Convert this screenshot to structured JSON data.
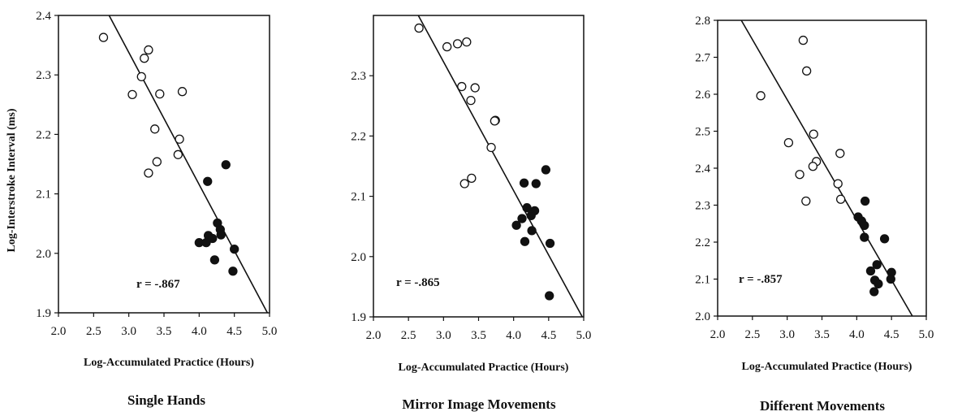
{
  "chart_data": [
    {
      "type": "scatter",
      "title": "Single Hands",
      "xlabel": "Log-Accumulated Practice (Hours)",
      "ylabel": "Log-Interstroke Interval (ms)",
      "xlim": [
        2.0,
        5.0
      ],
      "ylim": [
        1.9,
        2.4
      ],
      "xticks": [
        "2.0",
        "2.5",
        "3.0",
        "3.5",
        "4.0",
        "4.5",
        "5.0"
      ],
      "yticks": [
        "1.9",
        "2.0",
        "2.1",
        "2.2",
        "2.3",
        "2.4"
      ],
      "annotation": "r  =  -.867",
      "fit_line": [
        [
          2.72,
          2.4
        ],
        [
          4.97,
          1.9
        ]
      ],
      "series": [
        {
          "marker": "open",
          "points": [
            [
              2.64,
              2.363
            ],
            [
              3.05,
              2.267
            ],
            [
              3.18,
              2.297
            ],
            [
              3.22,
              2.328
            ],
            [
              3.28,
              2.342
            ],
            [
              3.44,
              2.268
            ],
            [
              3.76,
              2.272
            ],
            [
              3.37,
              2.209
            ],
            [
              3.72,
              2.192
            ],
            [
              3.7,
              2.166
            ],
            [
              3.4,
              2.154
            ],
            [
              3.28,
              2.135
            ]
          ]
        },
        {
          "marker": "filled",
          "points": [
            [
              4.12,
              2.121
            ],
            [
              4.38,
              2.149
            ],
            [
              4.26,
              2.051
            ],
            [
              4.3,
              2.04
            ],
            [
              4.31,
              2.031
            ],
            [
              4.13,
              2.03
            ],
            [
              4.19,
              2.025
            ],
            [
              4.0,
              2.018
            ],
            [
              4.1,
              2.018
            ],
            [
              4.5,
              2.007
            ],
            [
              4.22,
              1.989
            ],
            [
              4.48,
              1.97
            ]
          ]
        }
      ]
    },
    {
      "type": "scatter",
      "title": "Mirror Image Movements",
      "xlabel": "Log-Accumulated Practice (Hours)",
      "ylabel": "",
      "xlim": [
        2.0,
        5.0
      ],
      "ylim": [
        1.9,
        2.4
      ],
      "xticks": [
        "2.0",
        "2.5",
        "3.0",
        "3.5",
        "4.0",
        "4.5",
        "5.0"
      ],
      "yticks": [
        "1.9",
        "2.0",
        "2.1",
        "2.2",
        "2.3"
      ],
      "annotation": "r  =  -.865",
      "fit_line": [
        [
          2.64,
          2.4
        ],
        [
          4.98,
          1.9
        ]
      ],
      "series": [
        {
          "marker": "open",
          "points": [
            [
              2.65,
              2.379
            ],
            [
              3.05,
              2.348
            ],
            [
              3.2,
              2.353
            ],
            [
              3.33,
              2.356
            ],
            [
              3.26,
              2.282
            ],
            [
              3.45,
              2.28
            ],
            [
              3.39,
              2.259
            ],
            [
              3.74,
              2.226
            ],
            [
              3.73,
              2.225
            ],
            [
              3.68,
              2.181
            ],
            [
              3.4,
              2.13
            ],
            [
              3.3,
              2.121
            ]
          ]
        },
        {
          "marker": "filled",
          "points": [
            [
              4.15,
              2.122
            ],
            [
              4.32,
              2.121
            ],
            [
              4.46,
              2.144
            ],
            [
              4.19,
              2.081
            ],
            [
              4.3,
              2.076
            ],
            [
              4.25,
              2.068
            ],
            [
              4.12,
              2.063
            ],
            [
              4.04,
              2.052
            ],
            [
              4.26,
              2.043
            ],
            [
              4.16,
              2.025
            ],
            [
              4.52,
              2.022
            ],
            [
              4.51,
              1.935
            ]
          ]
        }
      ]
    },
    {
      "type": "scatter",
      "title": "Different  Movements",
      "xlabel": "Log-Accumulated Practice (Hours)",
      "ylabel": "",
      "xlim": [
        2.0,
        5.0
      ],
      "ylim": [
        2.0,
        2.8
      ],
      "xticks": [
        "2.0",
        "2.5",
        "3.0",
        "3.5",
        "4.0",
        "4.5",
        "5.0"
      ],
      "yticks": [
        "2.0",
        "2.1",
        "2.2",
        "2.3",
        "2.4",
        "2.5",
        "2.6",
        "2.7",
        "2.8"
      ],
      "annotation": "r  =  -.857",
      "fit_line": [
        [
          2.34,
          2.8
        ],
        [
          4.8,
          2.0
        ]
      ],
      "series": [
        {
          "marker": "open",
          "points": [
            [
              3.23,
              2.746
            ],
            [
              3.28,
              2.663
            ],
            [
              2.62,
              2.596
            ],
            [
              3.38,
              2.492
            ],
            [
              3.02,
              2.469
            ],
            [
              3.76,
              2.44
            ],
            [
              3.42,
              2.418
            ],
            [
              3.37,
              2.405
            ],
            [
              3.18,
              2.383
            ],
            [
              3.73,
              2.358
            ],
            [
              3.77,
              2.316
            ],
            [
              3.27,
              2.311
            ]
          ]
        },
        {
          "marker": "filled",
          "points": [
            [
              4.12,
              2.311
            ],
            [
              4.02,
              2.268
            ],
            [
              4.07,
              2.257
            ],
            [
              4.11,
              2.245
            ],
            [
              4.11,
              2.213
            ],
            [
              4.4,
              2.209
            ],
            [
              4.29,
              2.139
            ],
            [
              4.2,
              2.122
            ],
            [
              4.5,
              2.118
            ],
            [
              4.26,
              2.097
            ],
            [
              4.31,
              2.087
            ],
            [
              4.25,
              2.066
            ],
            [
              4.49,
              2.1
            ]
          ]
        }
      ]
    }
  ]
}
